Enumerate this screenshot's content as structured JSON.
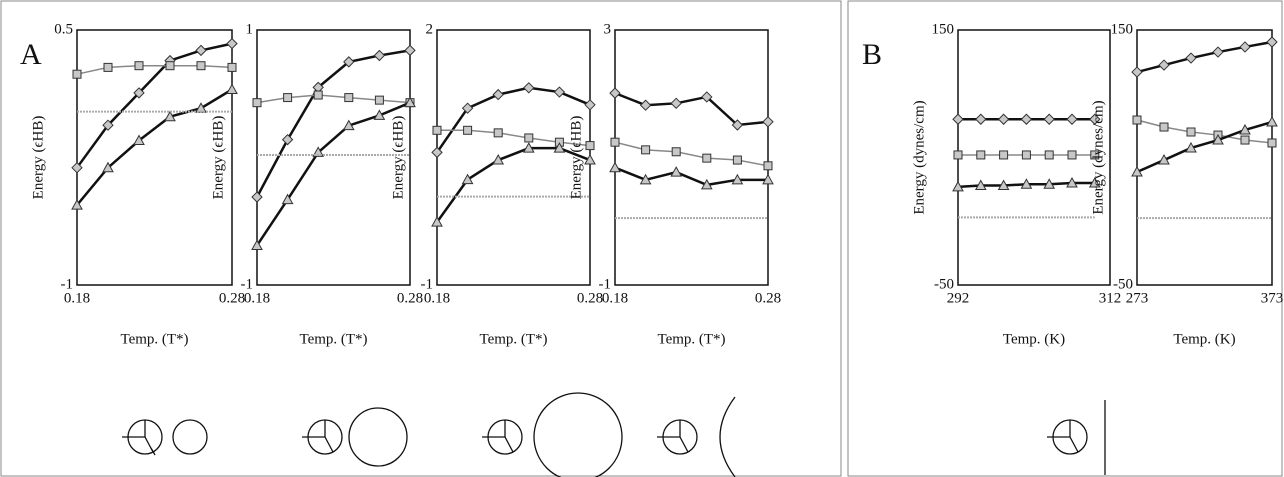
{
  "panel_labels": [
    "A",
    "B"
  ],
  "chart_data": [
    {
      "type": "line",
      "ylabel": "Energy (ϵHB)",
      "xlabel": "Temp. (T*)",
      "xlim": [
        0.18,
        0.28
      ],
      "ylim": [
        -1,
        0.5
      ],
      "xticks": [
        0.18,
        0.28
      ],
      "yticks": [
        -1,
        0.5
      ],
      "x": [
        0.18,
        0.2,
        0.22,
        0.24,
        0.26,
        0.28
      ],
      "series": [
        {
          "marker": "diamond",
          "color": "#111111",
          "values": [
            -0.31,
            -0.06,
            0.13,
            0.32,
            0.38,
            0.42
          ]
        },
        {
          "marker": "square",
          "color": "#888888",
          "values": [
            0.24,
            0.28,
            0.29,
            0.29,
            0.29,
            0.28
          ]
        },
        {
          "marker": "triangle",
          "color": "#111111",
          "values": [
            -0.53,
            -0.31,
            -0.15,
            -0.01,
            0.04,
            0.15
          ]
        },
        {
          "marker": "none",
          "color": "#aaaaaa",
          "values": [
            0.02,
            0.02,
            0.02,
            0.02,
            0.02,
            0.02
          ]
        }
      ]
    },
    {
      "type": "line",
      "ylabel": "Energy (ϵHB)",
      "xlabel": "Temp. (T*)",
      "xlim": [
        0.18,
        0.28
      ],
      "ylim": [
        -1,
        1
      ],
      "xticks": [
        0.18,
        0.28
      ],
      "yticks": [
        -1,
        1
      ],
      "x": [
        0.18,
        0.2,
        0.22,
        0.24,
        0.26,
        0.28
      ],
      "series": [
        {
          "marker": "diamond",
          "color": "#111111",
          "values": [
            -0.31,
            0.14,
            0.55,
            0.75,
            0.8,
            0.84
          ]
        },
        {
          "marker": "square",
          "color": "#888888",
          "values": [
            0.43,
            0.47,
            0.49,
            0.47,
            0.45,
            0.43
          ]
        },
        {
          "marker": "triangle",
          "color": "#111111",
          "values": [
            -0.69,
            -0.33,
            0.04,
            0.25,
            0.33,
            0.43
          ]
        },
        {
          "marker": "none",
          "color": "#aaaaaa",
          "values": [
            0.02,
            0.02,
            0.02,
            0.02,
            0.02,
            0.02
          ]
        }
      ]
    },
    {
      "type": "line",
      "ylabel": "Energy (ϵHB)",
      "xlabel": "Temp. (T*)",
      "xlim": [
        0.18,
        0.28
      ],
      "ylim": [
        -1,
        2
      ],
      "xticks": [
        0.18,
        0.28
      ],
      "yticks": [
        -1,
        2
      ],
      "x": [
        0.18,
        0.2,
        0.22,
        0.24,
        0.26,
        0.28
      ],
      "series": [
        {
          "marker": "diamond",
          "color": "#111111",
          "values": [
            0.56,
            1.08,
            1.24,
            1.32,
            1.27,
            1.12
          ]
        },
        {
          "marker": "square",
          "color": "#888888",
          "values": [
            0.82,
            0.82,
            0.79,
            0.73,
            0.68,
            0.64
          ]
        },
        {
          "marker": "triangle",
          "color": "#111111",
          "values": [
            -0.26,
            0.24,
            0.47,
            0.61,
            0.61,
            0.47
          ]
        },
        {
          "marker": "none",
          "color": "#aaaaaa",
          "values": [
            0.04,
            0.04,
            0.04,
            0.04,
            0.04,
            0.04
          ]
        }
      ]
    },
    {
      "type": "line",
      "ylabel": "Energy (ϵHB)",
      "xlabel": "Temp. (T*)",
      "xlim": [
        0.18,
        0.28
      ],
      "ylim": [
        -1,
        3
      ],
      "xticks": [
        0.18,
        0.28
      ],
      "yticks": [
        -1,
        3
      ],
      "x": [
        0.18,
        0.2,
        0.22,
        0.24,
        0.26,
        0.28
      ],
      "series": [
        {
          "marker": "diamond",
          "color": "#111111",
          "values": [
            2.01,
            1.82,
            1.85,
            1.95,
            1.51,
            1.56
          ]
        },
        {
          "marker": "square",
          "color": "#888888",
          "values": [
            1.24,
            1.12,
            1.09,
            0.99,
            0.96,
            0.87
          ]
        },
        {
          "marker": "triangle",
          "color": "#111111",
          "values": [
            0.84,
            0.65,
            0.77,
            0.57,
            0.65,
            0.65
          ]
        },
        {
          "marker": "none",
          "color": "#aaaaaa",
          "values": [
            0.05,
            0.05,
            0.05,
            0.05,
            0.05,
            0.05
          ]
        }
      ]
    },
    {
      "type": "line",
      "ylabel": "Energy (dynes/cm)",
      "xlabel": "Temp. (K)",
      "xlim": [
        292,
        312
      ],
      "ylim": [
        -50,
        150
      ],
      "xticks": [
        292,
        312
      ],
      "yticks": [
        -50,
        150
      ],
      "x": [
        292,
        295,
        298,
        301,
        304,
        307,
        310
      ],
      "series": [
        {
          "marker": "diamond",
          "color": "#111111",
          "values": [
            80,
            80,
            80,
            80,
            80,
            80,
            80
          ]
        },
        {
          "marker": "square",
          "color": "#888888",
          "values": [
            52,
            52,
            52,
            52,
            52,
            52,
            52
          ]
        },
        {
          "marker": "triangle",
          "color": "#111111",
          "values": [
            27,
            28,
            28,
            29,
            29,
            30,
            30
          ]
        },
        {
          "marker": "none",
          "color": "#aaaaaa",
          "values": [
            3,
            3,
            3,
            3,
            3,
            3,
            3
          ]
        }
      ]
    },
    {
      "type": "line",
      "ylabel": "Energy (dynes/cm)",
      "xlabel": "Temp. (K)",
      "xlim": [
        273,
        373
      ],
      "ylim": [
        -50,
        150
      ],
      "xticks": [
        273,
        373
      ],
      "yticks": [
        -50,
        150
      ],
      "x": [
        273,
        293,
        313,
        333,
        353,
        373
      ],
      "series": [
        {
          "marker": "diamond",
          "color": "#111111",
          "values": [
            117,
            122.5,
            128,
            132.7,
            136.7,
            140.6
          ]
        },
        {
          "marker": "square",
          "color": "#888888",
          "values": [
            79.4,
            73.9,
            70,
            67.6,
            63.7,
            61.4
          ]
        },
        {
          "marker": "triangle",
          "color": "#111111",
          "values": [
            38.6,
            48,
            57.5,
            63.7,
            71.6,
            77.8
          ]
        },
        {
          "marker": "none",
          "color": "#aaaaaa",
          "values": [
            2.5,
            2.5,
            2.5,
            2.5,
            2.5,
            2.5
          ]
        }
      ]
    }
  ]
}
